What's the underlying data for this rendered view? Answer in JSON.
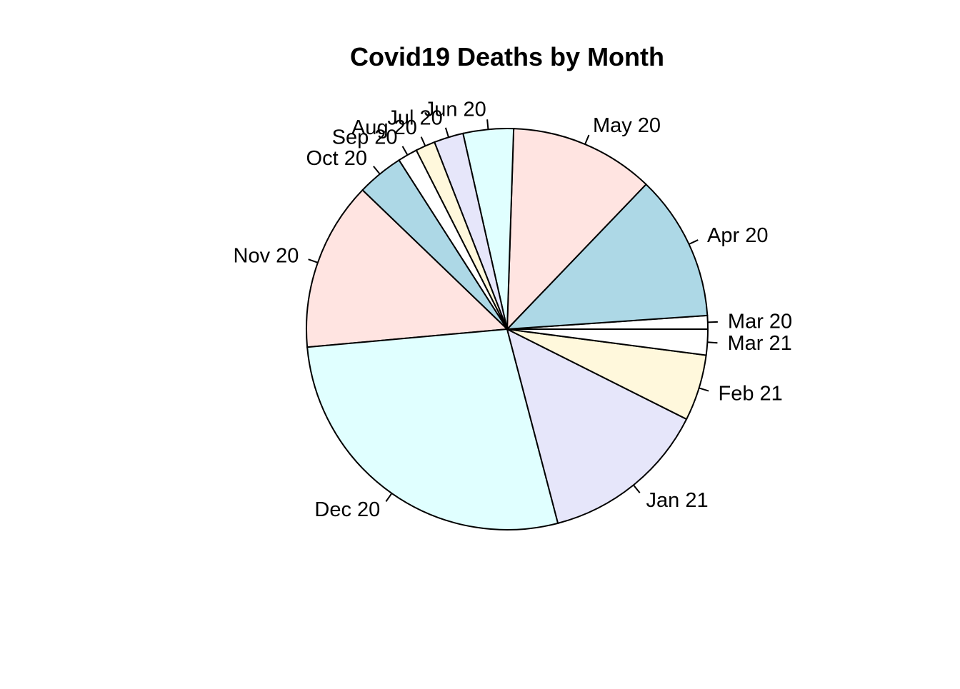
{
  "chart_data": {
    "type": "pie",
    "title": "Covid19 Deaths by Month",
    "start_angle_deg": 0,
    "direction": "counterclockwise",
    "slices": [
      {
        "label": "Mar 20",
        "value": 1.1,
        "color": "#FFFFFF"
      },
      {
        "label": "Apr 20",
        "value": 11.9,
        "color": "#ADD8E6"
      },
      {
        "label": "May 20",
        "value": 11.8,
        "color": "#FFE4E1"
      },
      {
        "label": "Jun 20",
        "value": 4.1,
        "color": "#E0FFFF"
      },
      {
        "label": "Jul 20",
        "value": 2.4,
        "color": "#E6E6FA"
      },
      {
        "label": "Aug 20",
        "value": 1.6,
        "color": "#FFF8DC"
      },
      {
        "label": "Sep 20",
        "value": 1.6,
        "color": "#FFFFFF"
      },
      {
        "label": "Oct 20",
        "value": 3.8,
        "color": "#ADD8E6"
      },
      {
        "label": "Nov 20",
        "value": 13.8,
        "color": "#FFE4E1"
      },
      {
        "label": "Dec 20",
        "value": 28.0,
        "color": "#E0FFFF"
      },
      {
        "label": "Jan 21",
        "value": 13.7,
        "color": "#E6E6FA"
      },
      {
        "label": "Feb 21",
        "value": 5.4,
        "color": "#FFF8DC"
      },
      {
        "label": "Mar 21",
        "value": 2.1,
        "color": "#FFFFFF"
      }
    ]
  }
}
